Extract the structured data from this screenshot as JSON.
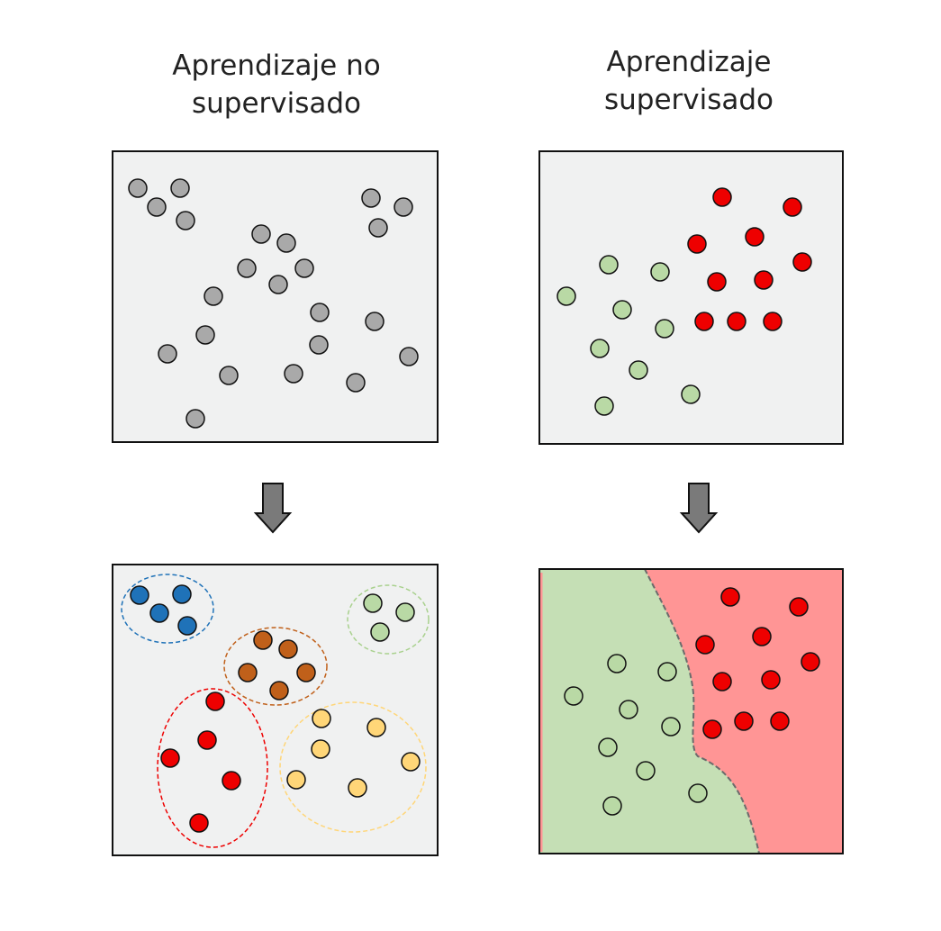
{
  "titles": {
    "unsupervised": "Aprendizaje no\nsupervisado",
    "supervised": "Aprendizaje\nsupervisado"
  },
  "colors": {
    "panel_bg": "#f0f1f1",
    "gray": "#a9a9a9",
    "red": "#ee0000",
    "green": "#b9d9a5",
    "blue": "#1f72b8",
    "brown": "#c0601a",
    "yellow": "#ffd678",
    "green_region": "#c5dfb5",
    "red_region": "#ff9595",
    "arrow": "#7a7a7a"
  },
  "icons": {
    "arrow": "down-arrow-icon"
  }
}
